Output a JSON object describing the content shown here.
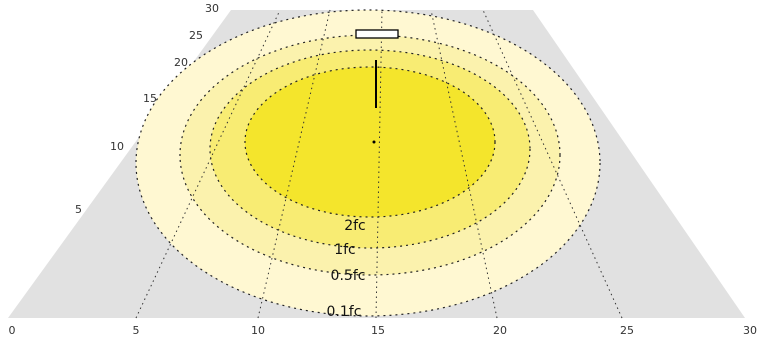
{
  "chart_data": {
    "type": "isofootcandle",
    "x_ticks": [
      "0",
      "5",
      "10",
      "15",
      "20",
      "25",
      "30"
    ],
    "y_ticks": [
      "5",
      "10",
      "15",
      "20",
      "25",
      "30"
    ],
    "contours": [
      {
        "label": "0.1fc",
        "level": 0.1,
        "color": "#fff8d2"
      },
      {
        "label": "0.5fc",
        "level": 0.5,
        "color": "#fbf2ad"
      },
      {
        "label": "1fc",
        "level": 1,
        "color": "#f8ec73"
      },
      {
        "label": "2fc",
        "level": 2,
        "color": "#f4e52c"
      }
    ],
    "plane_color": "#e1e1e1",
    "fixture_position": {
      "x": 15,
      "y": 25
    }
  }
}
